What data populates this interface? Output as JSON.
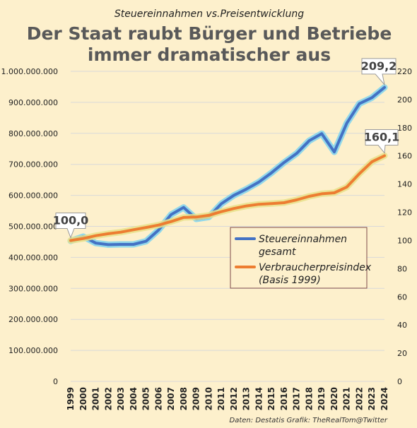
{
  "chart_data": {
    "type": "line",
    "subtitle": "Steuereinnahmen vs.Preisentwicklung",
    "title_lines": [
      "Der Staat raubt Bürger und Betriebe",
      "immer dramatischer aus"
    ],
    "x": [
      "1999",
      "2000",
      "2001",
      "2002",
      "2003",
      "2004",
      "2005",
      "2006",
      "2007",
      "2008",
      "2009",
      "2010",
      "2011",
      "2012",
      "2013",
      "2014",
      "2015",
      "2016",
      "2017",
      "2018",
      "2019",
      "2020",
      "2021",
      "2022",
      "2023",
      "2024"
    ],
    "y_left": {
      "ylim": [
        0,
        1000000000
      ],
      "ticks": [
        0,
        100000000,
        200000000,
        300000000,
        400000000,
        500000000,
        600000000,
        700000000,
        800000000,
        900000000,
        1000000000
      ],
      "tick_labels": [
        "0",
        "100.000.000",
        "200.000.000",
        "300.000.000",
        "400.000.000",
        "500.000.000",
        "600.000.000",
        "700.000.000",
        "800.000.000",
        "900.000.000",
        "1.000.000.000"
      ]
    },
    "y_right": {
      "ylim": [
        0,
        220
      ],
      "ticks": [
        0,
        20,
        40,
        60,
        80,
        100,
        120,
        140,
        160,
        180,
        200,
        220
      ],
      "tick_labels": [
        "0",
        "20",
        "40",
        "60",
        "80",
        "100",
        "120",
        "140",
        "160",
        "180",
        "200",
        "220"
      ]
    },
    "grid": true,
    "series": [
      {
        "name": "Steuereinnahmen gesamt",
        "axis": "left",
        "color": "#4472c4",
        "glow": "#7fd3ee",
        "values": [
          453000000,
          467000000,
          446000000,
          441000000,
          442000000,
          442000000,
          452000000,
          488000000,
          538000000,
          561000000,
          524000000,
          530000000,
          573000000,
          600000000,
          620000000,
          643000000,
          673000000,
          706000000,
          735000000,
          776000000,
          799000000,
          740000000,
          833000000,
          896000000,
          915000000,
          948000000
        ]
      },
      {
        "name": "Verbraucherpreisindex (Basis 1999)",
        "axis": "right",
        "color": "#ed7d31",
        "glow": "#e8e08a",
        "values": [
          100.0,
          101.4,
          103.4,
          104.8,
          105.9,
          107.6,
          109.2,
          110.9,
          113.4,
          116.3,
          116.6,
          117.8,
          120.4,
          122.7,
          124.5,
          125.7,
          126.2,
          126.8,
          128.8,
          131.3,
          133.1,
          133.8,
          137.9,
          147.4,
          155.8,
          160.1
        ]
      }
    ],
    "legend": {
      "placement": "center-right",
      "entries": [
        {
          "lines": [
            "Steuereinnahmen",
            "gesamt"
          ],
          "color": "#4472c4"
        },
        {
          "lines": [
            "Verbraucherpreisindex",
            "(Basis 1999)"
          ],
          "color": "#ed7d31"
        }
      ]
    },
    "annotations": [
      {
        "text": "100,0",
        "series": 1,
        "x": "1999"
      },
      {
        "text": "209,2",
        "series": 0,
        "x": "2024"
      },
      {
        "text": "160,1",
        "series": 1,
        "x": "2024"
      }
    ],
    "footnote": "Daten: Destatis  Grafik: TheRealTom@Twitter"
  }
}
